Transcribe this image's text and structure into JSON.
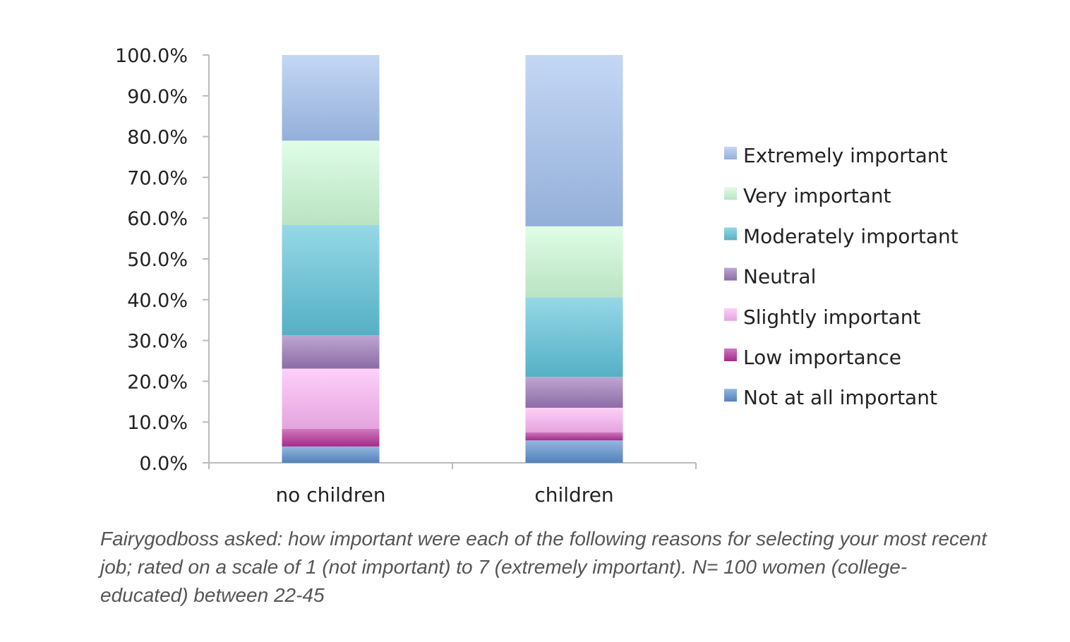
{
  "chart_data": {
    "type": "bar",
    "stacked": true,
    "categories": [
      "no children",
      "children"
    ],
    "series": [
      {
        "name": "Not at all important",
        "values": [
          4.0,
          5.5
        ],
        "color": "#5b8fcf"
      },
      {
        "name": "Low importance",
        "values": [
          4.3,
          2.0
        ],
        "color": "#b5309a"
      },
      {
        "name": "Slightly important",
        "values": [
          14.8,
          6.0
        ],
        "color": "#fdb6f6"
      },
      {
        "name": "Neutral",
        "values": [
          8.2,
          7.6
        ],
        "color": "#9a78b8"
      },
      {
        "name": "Moderately important",
        "values": [
          27.0,
          19.5
        ],
        "color": "#5ec3da"
      },
      {
        "name": "Very important",
        "values": [
          20.7,
          17.4
        ],
        "color": "#cffcd9"
      },
      {
        "name": "Extremely important",
        "values": [
          21.0,
          42.0
        ],
        "color": "#a4c2f0"
      }
    ],
    "y_ticks": [
      "0.0%",
      "10.0%",
      "20.0%",
      "30.0%",
      "40.0%",
      "50.0%",
      "60.0%",
      "70.0%",
      "80.0%",
      "90.0%",
      "100.0%"
    ],
    "ylim": [
      0,
      100
    ],
    "title": "",
    "xlabel": "",
    "ylabel": "",
    "legend_position": "right",
    "legend_order": [
      "Extremely important",
      "Very important",
      "Moderately important",
      "Neutral",
      "Slightly important",
      "Low importance",
      "Not at all important"
    ]
  },
  "caption": "Fairygodboss asked: how important were each of the following reasons for selecting your most recent job; rated on a scale of 1 (not important) to 7 (extremely important). N= 100 women (college-educated) between 22-45"
}
